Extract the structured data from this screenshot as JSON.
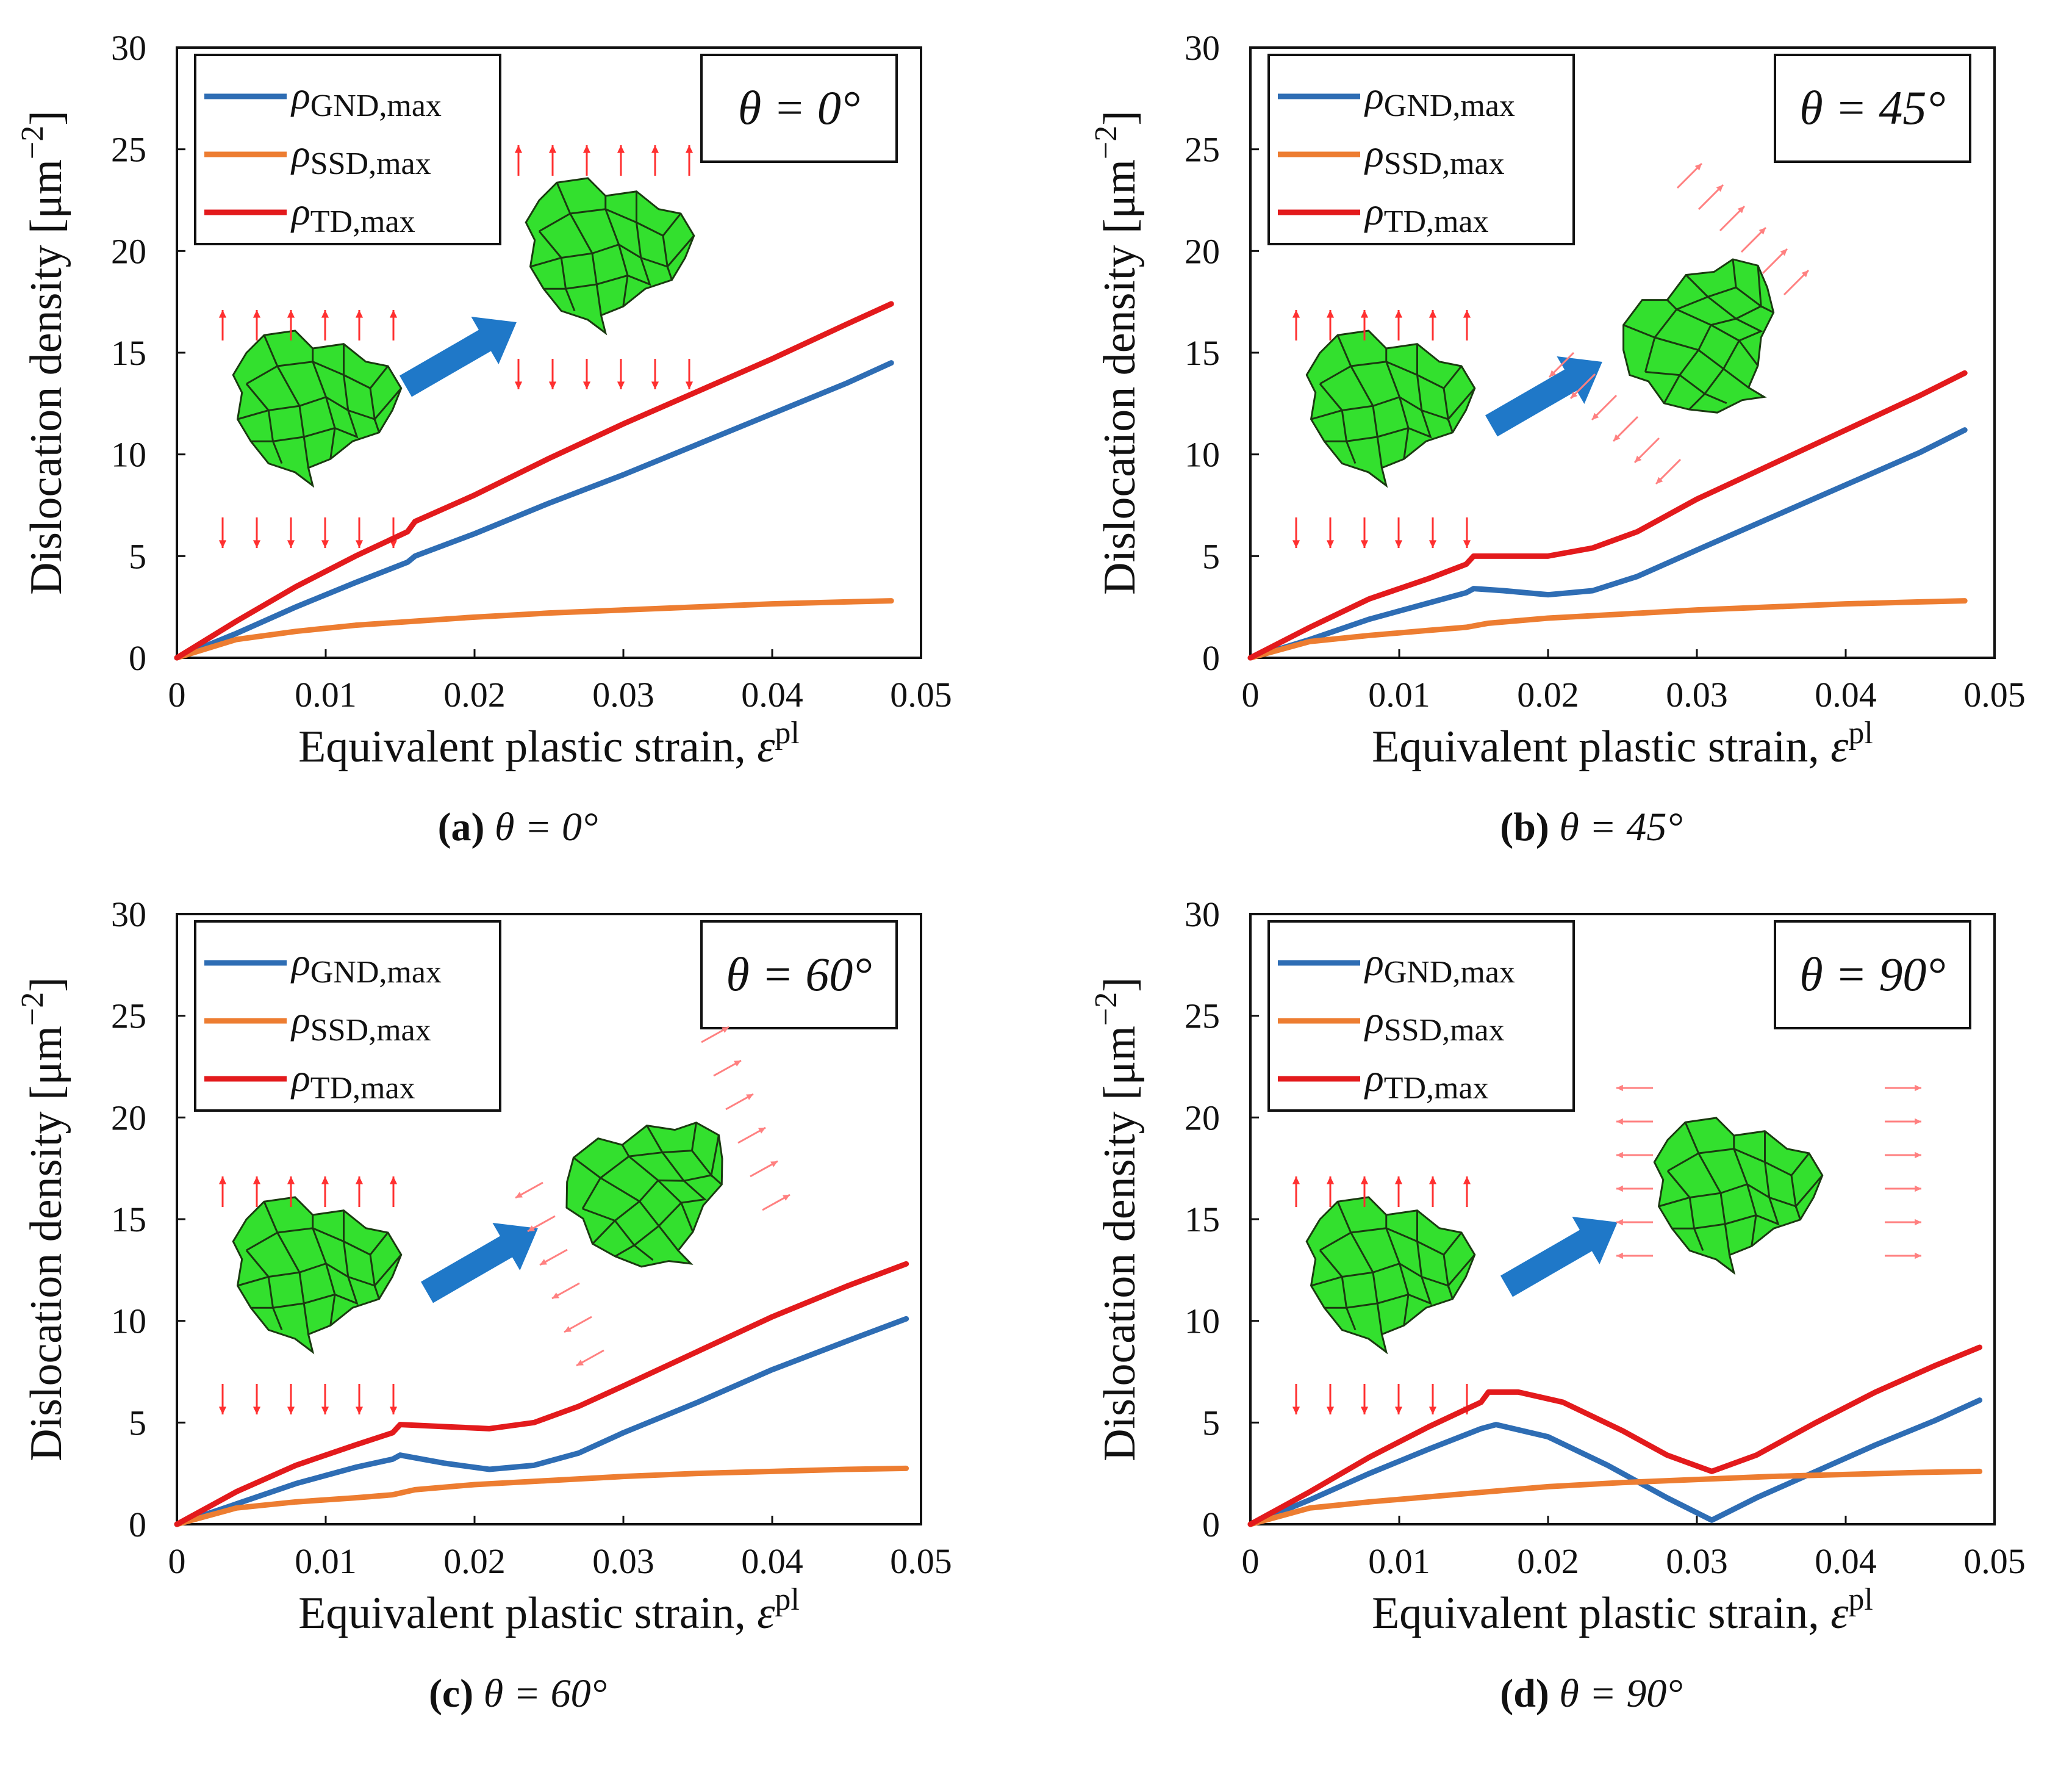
{
  "common": {
    "xlabel": "Equivalent plastic strain, ",
    "xlabel_symbol": "ε",
    "xlabel_sup": "pl",
    "ylabel": "Dislocation density [μm",
    "ylabel_sup": "−2",
    "ylabel_close": "]",
    "x_ticks": [
      "0",
      "0.01",
      "0.02",
      "0.03",
      "0.04",
      "0.05"
    ],
    "y_ticks": [
      "0",
      "5",
      "10",
      "15",
      "20",
      "25",
      "30"
    ],
    "legend": [
      {
        "symbol": "ρ",
        "sub": "GND,max",
        "color": "#2e6db4"
      },
      {
        "symbol": "ρ",
        "sub": "SSD,max",
        "color": "#ed7d31"
      },
      {
        "symbol": "ρ",
        "sub": "TD,max",
        "color": "#e31a1c"
      }
    ],
    "colors": {
      "gnd": "#2e6db4",
      "ssd": "#ed7d31",
      "td": "#e31a1c",
      "grain": "#33e02e",
      "arrow": "#1f78c8",
      "load_arrow": "#ff3030"
    }
  },
  "chart_data": [
    {
      "type": "line",
      "panel": "a",
      "caption_letter": "(a)",
      "caption_theta": "θ = 0°",
      "box_label": "θ = 0°",
      "xlabel": "Equivalent plastic strain, εpl",
      "ylabel": "Dislocation density [μm−2]",
      "xlim": [
        0,
        0.05
      ],
      "ylim": [
        0,
        30
      ],
      "series": [
        {
          "name": "ρGND,max",
          "x": [
            0,
            0.004,
            0.008,
            0.012,
            0.0155,
            0.016,
            0.02,
            0.025,
            0.03,
            0.035,
            0.04,
            0.045,
            0.048
          ],
          "values": [
            0,
            1.2,
            2.5,
            3.7,
            4.7,
            5.0,
            6.1,
            7.6,
            9.0,
            10.5,
            12.0,
            13.5,
            14.5
          ]
        },
        {
          "name": "ρSSD,max",
          "x": [
            0,
            0.004,
            0.008,
            0.012,
            0.016,
            0.02,
            0.025,
            0.03,
            0.035,
            0.04,
            0.045,
            0.048
          ],
          "values": [
            0,
            0.9,
            1.3,
            1.6,
            1.8,
            2.0,
            2.2,
            2.35,
            2.5,
            2.65,
            2.75,
            2.8
          ]
        },
        {
          "name": "ρTD,max",
          "x": [
            0,
            0.004,
            0.008,
            0.012,
            0.0155,
            0.016,
            0.02,
            0.025,
            0.03,
            0.035,
            0.04,
            0.045,
            0.048
          ],
          "values": [
            0,
            1.8,
            3.5,
            5.0,
            6.2,
            6.7,
            8.0,
            9.8,
            11.5,
            13.1,
            14.7,
            16.4,
            17.4
          ]
        }
      ],
      "load": "vertical_to_vertical"
    },
    {
      "type": "line",
      "panel": "b",
      "caption_letter": "(b)",
      "caption_theta": "θ = 45°",
      "box_label": "θ = 45°",
      "xlabel": "Equivalent plastic strain, εpl",
      "ylabel": "Dislocation density [μm−2]",
      "xlim": [
        0,
        0.05
      ],
      "ylim": [
        0,
        30
      ],
      "series": [
        {
          "name": "ρGND,max",
          "x": [
            0,
            0.004,
            0.008,
            0.012,
            0.0145,
            0.015,
            0.017,
            0.02,
            0.023,
            0.026,
            0.03,
            0.035,
            0.04,
            0.045,
            0.048
          ],
          "values": [
            0,
            0.9,
            1.9,
            2.7,
            3.2,
            3.4,
            3.3,
            3.1,
            3.3,
            4.0,
            5.3,
            6.9,
            8.5,
            10.1,
            11.2
          ]
        },
        {
          "name": "ρSSD,max",
          "x": [
            0,
            0.004,
            0.008,
            0.012,
            0.0145,
            0.016,
            0.02,
            0.025,
            0.03,
            0.035,
            0.04,
            0.045,
            0.048
          ],
          "values": [
            0,
            0.8,
            1.1,
            1.35,
            1.5,
            1.7,
            1.95,
            2.15,
            2.35,
            2.5,
            2.65,
            2.75,
            2.8
          ]
        },
        {
          "name": "ρTD,max",
          "x": [
            0,
            0.004,
            0.008,
            0.012,
            0.0145,
            0.015,
            0.017,
            0.02,
            0.023,
            0.026,
            0.03,
            0.035,
            0.04,
            0.045,
            0.048
          ],
          "values": [
            0,
            1.5,
            2.9,
            3.9,
            4.6,
            5.0,
            5.0,
            5.0,
            5.4,
            6.2,
            7.8,
            9.5,
            11.2,
            12.9,
            14.0
          ]
        }
      ],
      "load": "vertical_to_diagonal45"
    },
    {
      "type": "line",
      "panel": "c",
      "caption_letter": "(c)",
      "caption_theta": "θ = 60°",
      "box_label": "θ = 60°",
      "xlabel": "Equivalent plastic strain, εpl",
      "ylabel": "Dislocation density [μm−2]",
      "xlim": [
        0,
        0.05
      ],
      "ylim": [
        0,
        30
      ],
      "series": [
        {
          "name": "ρGND,max",
          "x": [
            0,
            0.004,
            0.008,
            0.012,
            0.0145,
            0.015,
            0.018,
            0.021,
            0.024,
            0.027,
            0.03,
            0.035,
            0.04,
            0.045,
            0.049
          ],
          "values": [
            0,
            1.0,
            2.0,
            2.8,
            3.2,
            3.4,
            3.0,
            2.7,
            2.9,
            3.5,
            4.5,
            6.0,
            7.6,
            9.0,
            10.1
          ]
        },
        {
          "name": "ρSSD,max",
          "x": [
            0,
            0.004,
            0.008,
            0.012,
            0.0145,
            0.016,
            0.02,
            0.025,
            0.03,
            0.035,
            0.04,
            0.045,
            0.049
          ],
          "values": [
            0,
            0.8,
            1.1,
            1.3,
            1.45,
            1.7,
            1.95,
            2.15,
            2.35,
            2.5,
            2.6,
            2.7,
            2.75
          ]
        },
        {
          "name": "ρTD,max",
          "x": [
            0,
            0.004,
            0.008,
            0.012,
            0.0145,
            0.015,
            0.018,
            0.021,
            0.024,
            0.027,
            0.03,
            0.035,
            0.04,
            0.045,
            0.049
          ],
          "values": [
            0,
            1.6,
            2.9,
            3.9,
            4.5,
            4.9,
            4.8,
            4.7,
            5.0,
            5.8,
            6.8,
            8.5,
            10.2,
            11.7,
            12.8
          ]
        }
      ],
      "load": "vertical_to_diagonal60"
    },
    {
      "type": "line",
      "panel": "d",
      "caption_letter": "(d)",
      "caption_theta": "θ = 90°",
      "box_label": "θ = 90°",
      "xlabel": "Equivalent plastic strain, εpl",
      "ylabel": "Dislocation density [μm−2]",
      "xlim": [
        0,
        0.05
      ],
      "ylim": [
        0,
        30
      ],
      "series": [
        {
          "name": "ρGND,max",
          "x": [
            0,
            0.004,
            0.008,
            0.012,
            0.0155,
            0.0165,
            0.02,
            0.024,
            0.028,
            0.031,
            0.034,
            0.038,
            0.042,
            0.046,
            0.049
          ],
          "values": [
            0,
            1.2,
            2.5,
            3.7,
            4.7,
            4.9,
            4.3,
            2.9,
            1.3,
            0.2,
            1.3,
            2.6,
            3.9,
            5.1,
            6.1
          ]
        },
        {
          "name": "ρSSD,max",
          "x": [
            0,
            0.004,
            0.008,
            0.012,
            0.016,
            0.02,
            0.025,
            0.03,
            0.035,
            0.04,
            0.045,
            0.049
          ],
          "values": [
            0,
            0.8,
            1.1,
            1.35,
            1.6,
            1.85,
            2.05,
            2.2,
            2.35,
            2.45,
            2.55,
            2.6
          ]
        },
        {
          "name": "ρTD,max",
          "x": [
            0,
            0.004,
            0.008,
            0.012,
            0.0155,
            0.016,
            0.018,
            0.021,
            0.025,
            0.028,
            0.031,
            0.034,
            0.038,
            0.042,
            0.046,
            0.049
          ],
          "values": [
            0,
            1.6,
            3.3,
            4.8,
            6.0,
            6.5,
            6.5,
            6.0,
            4.6,
            3.4,
            2.6,
            3.4,
            5.0,
            6.5,
            7.8,
            8.7
          ]
        }
      ],
      "load": "vertical_to_horizontal"
    }
  ]
}
